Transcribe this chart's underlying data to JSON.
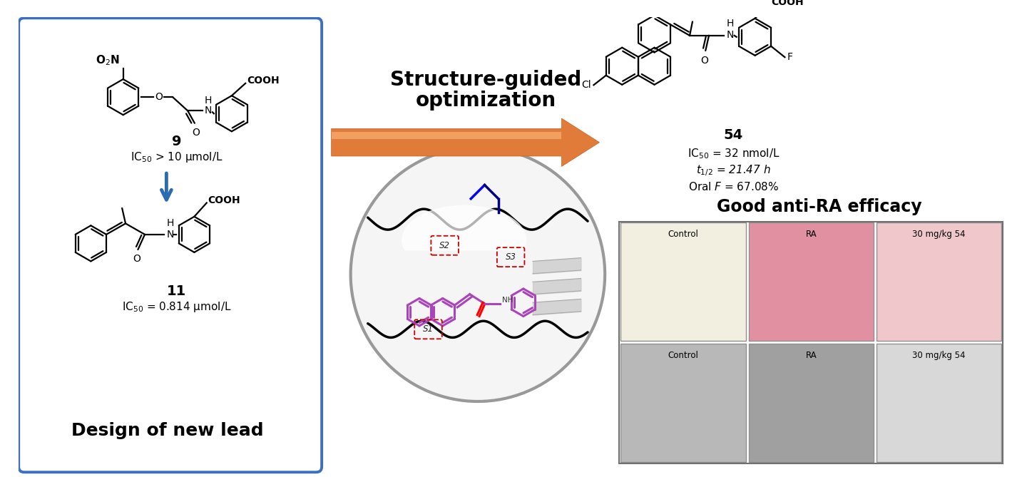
{
  "fig_width": 14.4,
  "fig_height": 6.69,
  "bg_color": "#ffffff",
  "left_box_color": "#3B6FC4",
  "compound9_label": "9",
  "compound9_ic50": "IC$_{50}$ > 10 μmol/L",
  "compound11_label": "11",
  "compound11_ic50": "IC$_{50}$ = 0.814 μmol/L",
  "left_box_footer": "Design of new lead",
  "center_text1": "Structure-guided",
  "center_text2": "optimization",
  "compound54_label": "54",
  "compound54_ic50": "IC$_{50}$ = 32 nmol/L",
  "compound54_t12": "$t_{1/2}$ = 21.47 h",
  "compound54_oral": "Oral $F$ = 67.08%",
  "right_title": "Good anti-RA efficacy",
  "arrow_color": "#E07B39",
  "blue_arrow_color": "#2B6BB0",
  "grid_labels_top": [
    "Control",
    "RA",
    "30 mg/kg 54"
  ],
  "grid_labels_bottom": [
    "Control",
    "RA",
    "30 mg/kg 54"
  ],
  "bond_lw": 1.6,
  "ring_r": 26
}
